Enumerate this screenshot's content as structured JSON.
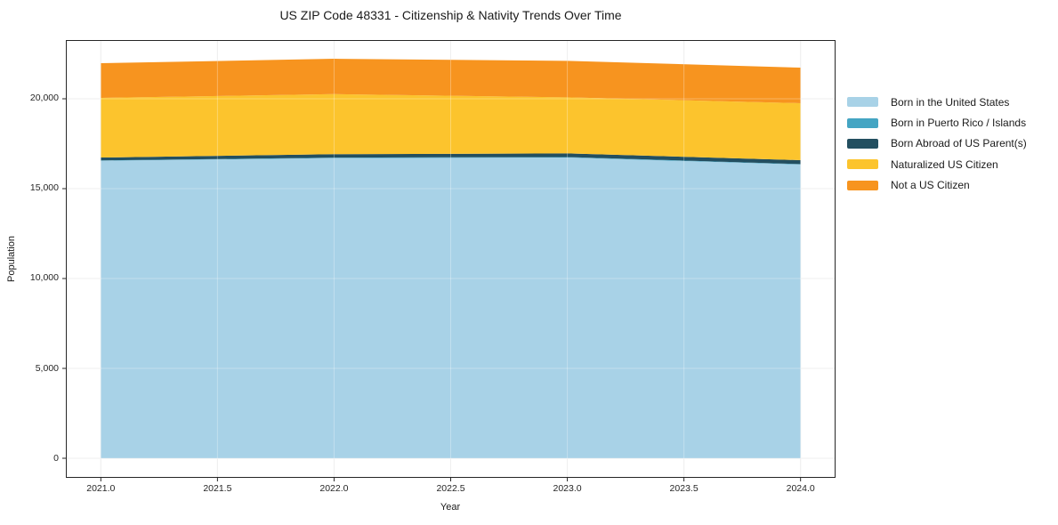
{
  "figure": {
    "background": "#ffffff",
    "spine_color": "#262626",
    "grid_color": "#e9e9e9"
  },
  "chart_data": {
    "type": "area",
    "stacked": true,
    "title": "US ZIP Code 48331 - Citizenship & Nativity Trends Over Time",
    "xlabel": "Year",
    "ylabel": "Population",
    "x": [
      2021,
      2022,
      2023,
      2024
    ],
    "series": [
      {
        "name": "Born in the United States",
        "color": "#a8d2e7",
        "values": [
          16550,
          16700,
          16730,
          16340
        ]
      },
      {
        "name": "Born in Puerto Rico / Islands",
        "color": "#44a5c3",
        "values": [
          20,
          25,
          30,
          25
        ]
      },
      {
        "name": "Born Abroad of US Parent(s)",
        "color": "#234f60",
        "values": [
          160,
          190,
          200,
          220
        ]
      },
      {
        "name": "Naturalized US Citizen",
        "color": "#fcc42d",
        "values": [
          3320,
          3345,
          3120,
          3170
        ]
      },
      {
        "name": "Not a US Citizen",
        "color": "#f7941f",
        "values": [
          1930,
          1965,
          2030,
          1975
        ]
      }
    ],
    "xlim": [
      2020.85,
      2024.15
    ],
    "ylim": [
      -1089,
      23267
    ],
    "xticks": [
      2021.0,
      2021.5,
      2022.0,
      2022.5,
      2023.0,
      2023.5,
      2024.0
    ],
    "xtick_labels": [
      "2021.0",
      "2021.5",
      "2022.0",
      "2022.5",
      "2023.0",
      "2023.5",
      "2024.0"
    ],
    "yticks": [
      0,
      5000,
      10000,
      15000,
      20000
    ],
    "ytick_labels": [
      "0",
      "5,000",
      "10,000",
      "15,000",
      "20,000"
    ],
    "grid": true,
    "legend_position": "right of plot, no frame"
  }
}
